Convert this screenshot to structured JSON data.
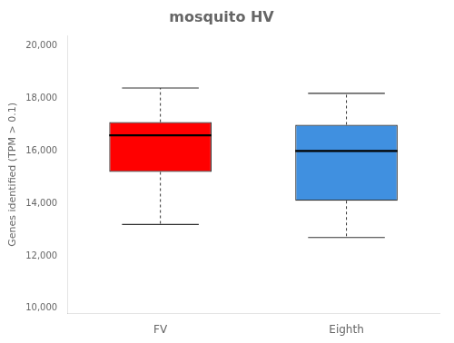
{
  "chart_data": {
    "type": "box",
    "title": "mosquito HV",
    "ylabel": "Genes identified (TPM > 0.1)",
    "categories": [
      "FV",
      "Eighth"
    ],
    "values": [
      {
        "whisker_low": 13200,
        "q1": 15200,
        "median": 16600,
        "q3": 17100,
        "whisker_high": 18400
      },
      {
        "whisker_low": 12700,
        "q1": 14100,
        "median": 16000,
        "q3": 17000,
        "whisker_high": 18200
      }
    ],
    "colors": [
      "#FF0000",
      "#4090E0"
    ],
    "ylim": [
      9800,
      20400
    ],
    "yticks": [
      {
        "value": 10000,
        "label": "10,000"
      },
      {
        "value": 12000,
        "label": "12,000"
      },
      {
        "value": 14000,
        "label": "14,000"
      },
      {
        "value": 16000,
        "label": "16,000"
      },
      {
        "value": 18000,
        "label": "18,000"
      },
      {
        "value": 20000,
        "label": "20,000"
      }
    ],
    "grid": false
  }
}
